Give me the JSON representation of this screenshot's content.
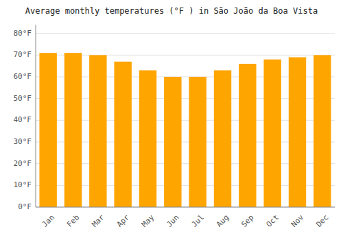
{
  "chart_data": {
    "type": "bar",
    "title": "Average monthly temperatures (°F ) in São João da Boa Vista",
    "categories": [
      "Jan",
      "Feb",
      "Mar",
      "Apr",
      "May",
      "Jun",
      "Jul",
      "Aug",
      "Sep",
      "Oct",
      "Nov",
      "Dec"
    ],
    "values": [
      71,
      71,
      70,
      67,
      63,
      60,
      60,
      63,
      66,
      68,
      69,
      70
    ],
    "color": "#FFA500",
    "ylim": [
      0,
      84
    ],
    "yticks": [
      {
        "value": 0,
        "label": "0°F"
      },
      {
        "value": 10,
        "label": "10°F"
      },
      {
        "value": 20,
        "label": "20°F"
      },
      {
        "value": 30,
        "label": "30°F"
      },
      {
        "value": 40,
        "label": "40°F"
      },
      {
        "value": 50,
        "label": "50°F"
      },
      {
        "value": 60,
        "label": "60°F"
      },
      {
        "value": 70,
        "label": "70°F"
      },
      {
        "value": 80,
        "label": "80°F"
      }
    ],
    "grid": true
  }
}
